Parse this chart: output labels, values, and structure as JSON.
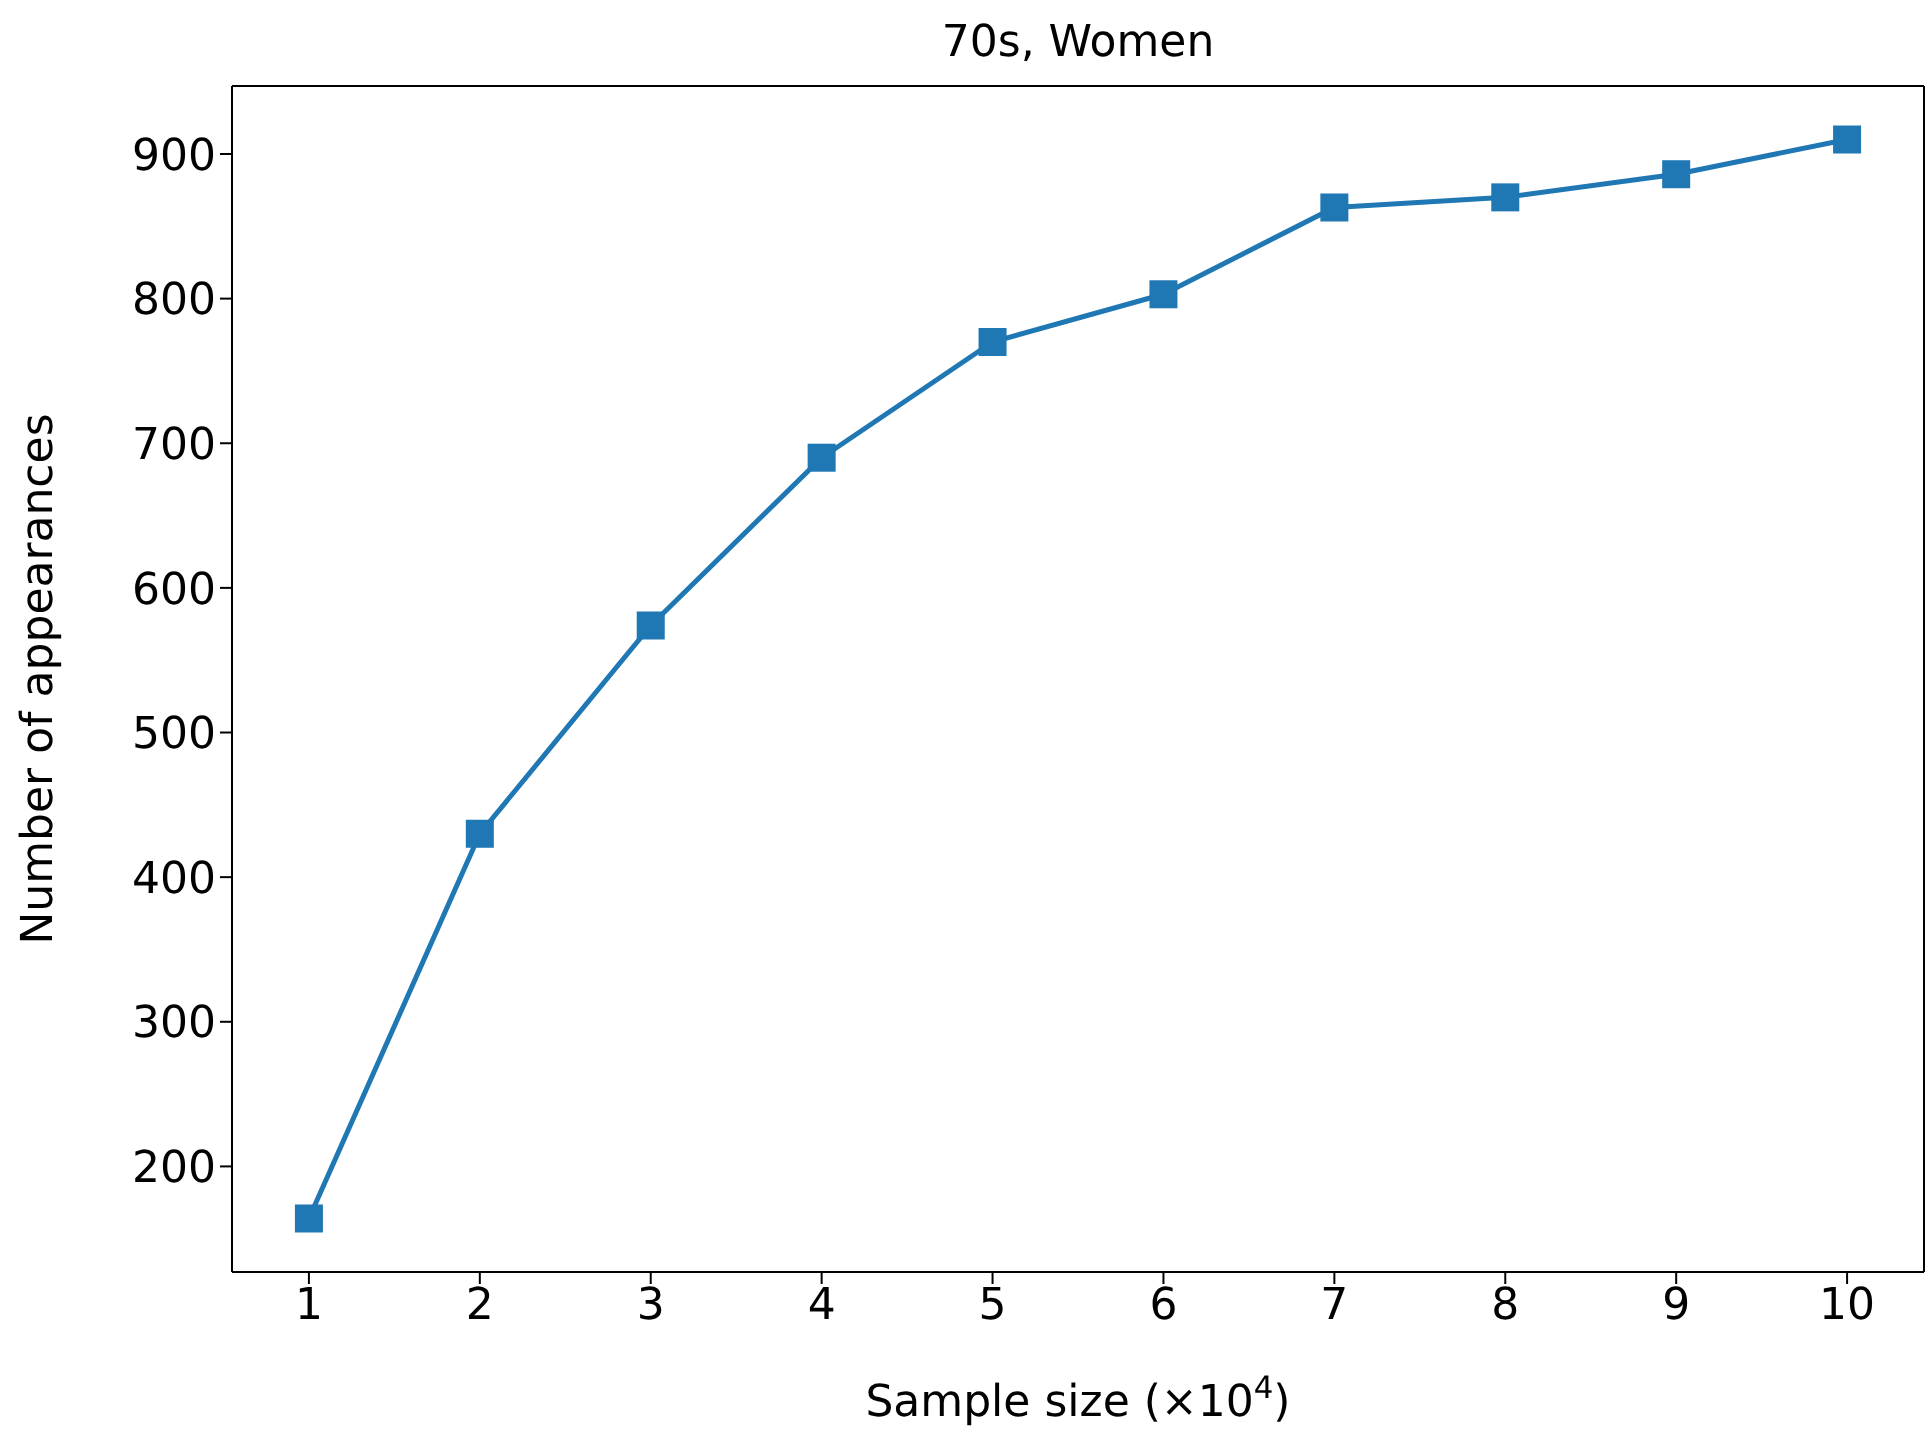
{
  "chart_data": {
    "type": "line",
    "title": "70s, Women",
    "xlabel": "Sample size (×10$^{4}$)",
    "ylabel": "Number of appearances",
    "x": [
      1,
      2,
      3,
      4,
      5,
      6,
      7,
      8,
      9,
      10
    ],
    "series": [
      {
        "color": "#1f77b4",
        "values": [
          164,
          430,
          574,
          690,
          770,
          803,
          863,
          870,
          886,
          910
        ]
      }
    ],
    "xlim": [
      0.55,
      10.45
    ],
    "xticks": [
      1,
      2,
      3,
      4,
      5,
      6,
      7,
      8,
      9,
      10
    ],
    "ylim": [
      127,
      947
    ],
    "yticks": [
      200,
      300,
      400,
      500,
      600,
      700,
      800,
      900
    ],
    "grid": false,
    "marker": "square",
    "line_style": "solid"
  }
}
